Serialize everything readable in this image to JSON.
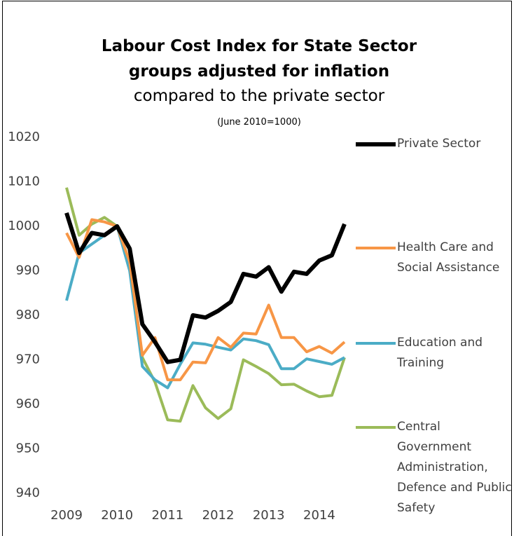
{
  "chart_data": {
    "type": "line",
    "title": "Labour Cost Index for State Sector groups adjusted for inflation",
    "subtitle": "compared to the private sector",
    "note": "(June 2010=1000)",
    "categories": [
      "2009",
      null,
      null,
      null,
      "2010",
      null,
      null,
      null,
      "2011",
      null,
      null,
      null,
      "2012",
      null,
      null,
      null,
      "2013",
      null,
      null,
      null,
      "2014",
      null,
      null
    ],
    "ylim": [
      940,
      1020
    ],
    "yticks": [
      940,
      950,
      960,
      970,
      980,
      990,
      1000,
      1010,
      1020
    ],
    "grid": false,
    "legend": "right",
    "series": [
      {
        "name": "Private Sector",
        "color": "#000000",
        "width": 6,
        "values": [
          1003,
          994,
          998.5,
          998,
          1000,
          995,
          978,
          974,
          969.5,
          970,
          980,
          979.5,
          981,
          983,
          989.3,
          988.7,
          990.8,
          985.3,
          989.8,
          989.3,
          992.3,
          993.5,
          1000.5
        ]
      },
      {
        "name": "Health Care and Social Assistance",
        "color": "#f79646",
        "width": 4,
        "values": [
          998.5,
          993,
          1001.5,
          1001,
          1000,
          992,
          971,
          975,
          965.5,
          965.5,
          969.5,
          969.3,
          975,
          972.8,
          976,
          975.8,
          982.3,
          975,
          975,
          971.8,
          973,
          971.5,
          974
        ]
      },
      {
        "name": "Education and Training",
        "color": "#4bacc6",
        "width": 4,
        "values": [
          983.3,
          994,
          996,
          998,
          1000,
          990,
          968.5,
          965.5,
          963.7,
          969,
          973.8,
          973.5,
          972.8,
          972.2,
          974.7,
          974.3,
          973.4,
          968,
          968,
          970.2,
          969.6,
          969,
          970.5
        ]
      },
      {
        "name": "Central Government Administration, Defence and Public Safety",
        "color": "#9bbb59",
        "width": 4,
        "values": [
          1008.7,
          998,
          1000.5,
          1002,
          1000,
          992,
          970.5,
          965,
          956.5,
          956.2,
          964.2,
          959.2,
          956.8,
          959,
          970,
          968.5,
          966.9,
          964.4,
          964.5,
          963,
          961.7,
          962,
          970.5
        ]
      }
    ]
  }
}
